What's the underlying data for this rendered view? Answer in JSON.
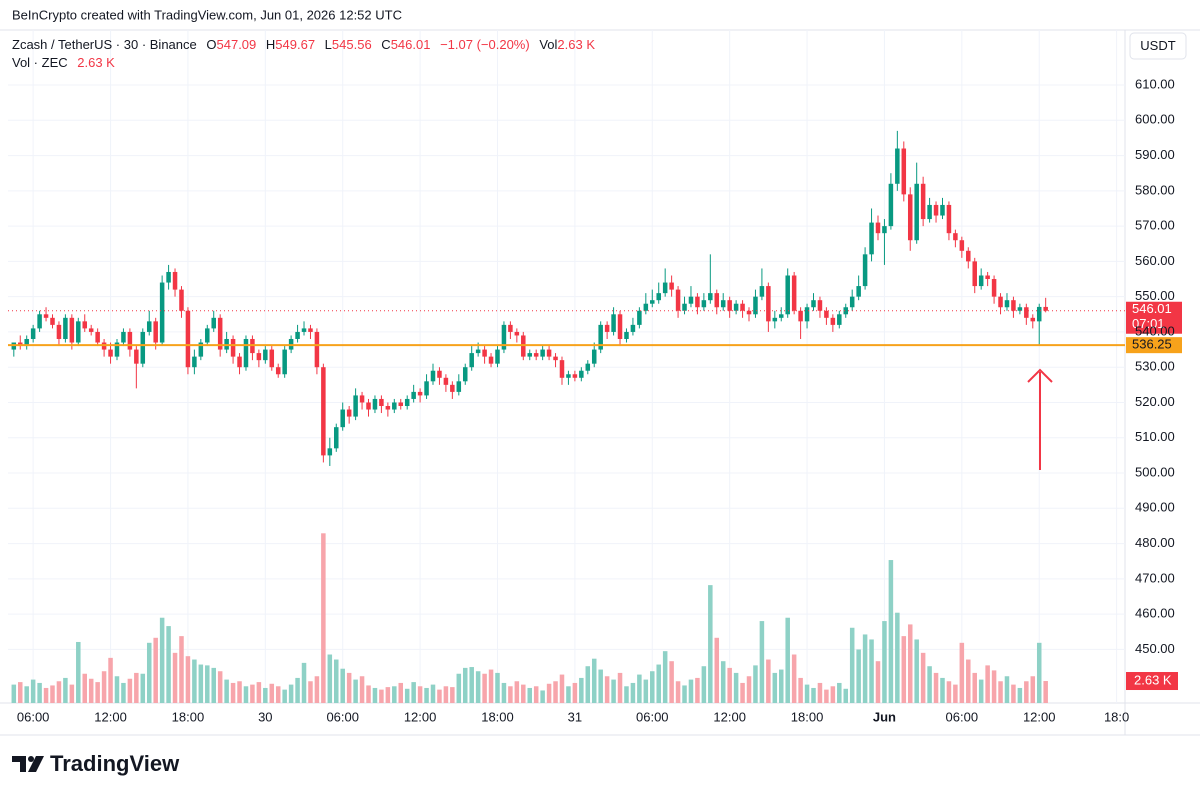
{
  "chart_data": {
    "type": "candlestick",
    "header": {
      "credit": "BeInCrypto created with TradingView.com, Jun 01, 2026 12:52 UTC",
      "symbol": "Zcash / TetherUS · 30 · Binance",
      "o_label": "O",
      "h_label": "H",
      "l_label": "L",
      "c_label": "C",
      "change": "−1.07 (−0.20%)",
      "vol_label": "Vol",
      "vol_value": "2.63 K",
      "vol_series": "Vol · ZEC"
    },
    "currency": "USDT",
    "countdown": "07:01",
    "brand": "TradingView",
    "up_color": "#089981",
    "down_color": "#f23645",
    "volume_up_color": "#8ed1c6",
    "volume_down_color": "#f7a5ab",
    "level": 536.25,
    "level_color": "#f7a21b",
    "grid": true,
    "ylim": [
      434.8,
      625.6
    ],
    "yticks": [
      {
        "value": 450,
        "label": "450.00"
      },
      {
        "value": 460,
        "label": "460.00"
      },
      {
        "value": 470,
        "label": "470.00"
      },
      {
        "value": 480,
        "label": "480.00"
      },
      {
        "value": 490,
        "label": "490.00"
      },
      {
        "value": 500,
        "label": "500.00"
      },
      {
        "value": 510,
        "label": "510.00"
      },
      {
        "value": 520,
        "label": "520.00"
      },
      {
        "value": 530,
        "label": "530.00"
      },
      {
        "value": 540,
        "label": "540.00"
      },
      {
        "value": 550,
        "label": "550.00"
      },
      {
        "value": 560,
        "label": "560.00"
      },
      {
        "value": 570,
        "label": "570.00"
      },
      {
        "value": 580,
        "label": "580.00"
      },
      {
        "value": 590,
        "label": "590.00"
      },
      {
        "value": 600,
        "label": "600.00"
      },
      {
        "value": 610,
        "label": "610.00"
      }
    ],
    "xlim": [
      -0.9,
      172.3
    ],
    "xticks": [
      {
        "value": 3,
        "label": "06:00"
      },
      {
        "value": 15,
        "label": "12:00"
      },
      {
        "value": 27,
        "label": "18:00"
      },
      {
        "value": 39,
        "label": "30"
      },
      {
        "value": 51,
        "label": "06:00"
      },
      {
        "value": 63,
        "label": "12:00"
      },
      {
        "value": 75,
        "label": "18:00"
      },
      {
        "value": 87,
        "label": "31"
      },
      {
        "value": 99,
        "label": "06:00"
      },
      {
        "value": 111,
        "label": "12:00"
      },
      {
        "value": 123,
        "label": "18:00"
      },
      {
        "value": 135,
        "label": "Jun"
      },
      {
        "value": 147,
        "label": "06:00"
      },
      {
        "value": 159,
        "label": "12:00"
      },
      {
        "value": 171,
        "label": "18:0"
      }
    ],
    "volume_ylim": [
      0,
      25
    ],
    "candles": [
      [
        535,
        537,
        533,
        537
      ],
      [
        537,
        539,
        535,
        536
      ],
      [
        536,
        539,
        535,
        538
      ],
      [
        538,
        542,
        537,
        541
      ],
      [
        541,
        546,
        540,
        545
      ],
      [
        545,
        547,
        543,
        544
      ],
      [
        544,
        545,
        541,
        542
      ],
      [
        542,
        543,
        536,
        538
      ],
      [
        538,
        545,
        537,
        544
      ],
      [
        544,
        545,
        535,
        537
      ],
      [
        537,
        544,
        536,
        543
      ],
      [
        543,
        545,
        540,
        541
      ],
      [
        541,
        542,
        539,
        540
      ],
      [
        540,
        541,
        536,
        537
      ],
      [
        537,
        538,
        533,
        535
      ],
      [
        535,
        537,
        531,
        533
      ],
      [
        533,
        538,
        532,
        537
      ],
      [
        537,
        541,
        536,
        540
      ],
      [
        540,
        541,
        533,
        535
      ],
      [
        535,
        536,
        524,
        531
      ],
      [
        531,
        541,
        530,
        540
      ],
      [
        540,
        546,
        539,
        543
      ],
      [
        543,
        544,
        535,
        537
      ],
      [
        537,
        556,
        536,
        554
      ],
      [
        554,
        559,
        552,
        557
      ],
      [
        557,
        558,
        550,
        552
      ],
      [
        552,
        553,
        544,
        546
      ],
      [
        546,
        547,
        528,
        530
      ],
      [
        530,
        535,
        528,
        533
      ],
      [
        533,
        538,
        532,
        537
      ],
      [
        537,
        542,
        536,
        541
      ],
      [
        541,
        546,
        540,
        544
      ],
      [
        544,
        545,
        533,
        535
      ],
      [
        535,
        540,
        534,
        538
      ],
      [
        538,
        539,
        531,
        533
      ],
      [
        533,
        534,
        528,
        530
      ],
      [
        530,
        539,
        529,
        538
      ],
      [
        538,
        539,
        532,
        534
      ],
      [
        534,
        535,
        530,
        532
      ],
      [
        532,
        536,
        531,
        535
      ],
      [
        535,
        536,
        529,
        530
      ],
      [
        530,
        531,
        527,
        528
      ],
      [
        528,
        536,
        527,
        535
      ],
      [
        535,
        539,
        534,
        538
      ],
      [
        538,
        542,
        537,
        540
      ],
      [
        540,
        543,
        539,
        541
      ],
      [
        541,
        542,
        538,
        540
      ],
      [
        540,
        541,
        528,
        530
      ],
      [
        530,
        531,
        503,
        505
      ],
      [
        505,
        510,
        502,
        507
      ],
      [
        507,
        514,
        506,
        513
      ],
      [
        513,
        520,
        512,
        518
      ],
      [
        518,
        519,
        514,
        516
      ],
      [
        516,
        524,
        515,
        522
      ],
      [
        522,
        523,
        518,
        520
      ],
      [
        520,
        521,
        516,
        518
      ],
      [
        518,
        522,
        517,
        521
      ],
      [
        521,
        522,
        517,
        519
      ],
      [
        519,
        520,
        516,
        518
      ],
      [
        518,
        521,
        517,
        520
      ],
      [
        520,
        521,
        518,
        519
      ],
      [
        519,
        522,
        518,
        521
      ],
      [
        521,
        525,
        520,
        523
      ],
      [
        523,
        524,
        520,
        522
      ],
      [
        522,
        528,
        521,
        526
      ],
      [
        526,
        531,
        525,
        529
      ],
      [
        529,
        530,
        525,
        527
      ],
      [
        527,
        528,
        523,
        525
      ],
      [
        525,
        526,
        521,
        523
      ],
      [
        523,
        528,
        522,
        526
      ],
      [
        526,
        531,
        525,
        530
      ],
      [
        530,
        536,
        529,
        534
      ],
      [
        534,
        537,
        533,
        535
      ],
      [
        535,
        536,
        531,
        533
      ],
      [
        533,
        534,
        530,
        531
      ],
      [
        531,
        536,
        530,
        535
      ],
      [
        535,
        543,
        534,
        542
      ],
      [
        542,
        543,
        538,
        540
      ],
      [
        540,
        541,
        537,
        539
      ],
      [
        539,
        540,
        532,
        533
      ],
      [
        533,
        535,
        532,
        534
      ],
      [
        534,
        535,
        532,
        533
      ],
      [
        533,
        536,
        532,
        535
      ],
      [
        535,
        536,
        532,
        533
      ],
      [
        533,
        534,
        530,
        532
      ],
      [
        532,
        533,
        525,
        527
      ],
      [
        527,
        529,
        525,
        528
      ],
      [
        528,
        529,
        526,
        527
      ],
      [
        527,
        530,
        526,
        529
      ],
      [
        529,
        532,
        528,
        531
      ],
      [
        531,
        537,
        530,
        535
      ],
      [
        535,
        543,
        534,
        542
      ],
      [
        542,
        543,
        538,
        540
      ],
      [
        540,
        547,
        539,
        545
      ],
      [
        545,
        546,
        536,
        538
      ],
      [
        538,
        541,
        537,
        540
      ],
      [
        540,
        544,
        539,
        542
      ],
      [
        542,
        547,
        541,
        546
      ],
      [
        546,
        551,
        545,
        548
      ],
      [
        548,
        552,
        547,
        549
      ],
      [
        549,
        554,
        548,
        551
      ],
      [
        551,
        558,
        550,
        554
      ],
      [
        554,
        556,
        550,
        552
      ],
      [
        552,
        553,
        544,
        546
      ],
      [
        546,
        550,
        545,
        548
      ],
      [
        548,
        553,
        547,
        550
      ],
      [
        550,
        551,
        545,
        547
      ],
      [
        547,
        551,
        546,
        549
      ],
      [
        549,
        562,
        548,
        551
      ],
      [
        551,
        552,
        545,
        547
      ],
      [
        547,
        551,
        546,
        549
      ],
      [
        549,
        550,
        544,
        546
      ],
      [
        546,
        549,
        545,
        548
      ],
      [
        548,
        549,
        544,
        546
      ],
      [
        546,
        547,
        543,
        545
      ],
      [
        545,
        552,
        544,
        550
      ],
      [
        550,
        558,
        549,
        553
      ],
      [
        553,
        554,
        540,
        543
      ],
      [
        543,
        546,
        541,
        544
      ],
      [
        544,
        547,
        543,
        545
      ],
      [
        545,
        558,
        544,
        556
      ],
      [
        556,
        557,
        545,
        546
      ],
      [
        546,
        547,
        538,
        543
      ],
      [
        543,
        548,
        541,
        547
      ],
      [
        547,
        551,
        546,
        549
      ],
      [
        549,
        550,
        544,
        546
      ],
      [
        546,
        547,
        542,
        544
      ],
      [
        544,
        545,
        540,
        542
      ],
      [
        542,
        546,
        541,
        545
      ],
      [
        545,
        548,
        544,
        547
      ],
      [
        547,
        552,
        546,
        550
      ],
      [
        550,
        556,
        549,
        553
      ],
      [
        553,
        564,
        552,
        562
      ],
      [
        562,
        575,
        560,
        571
      ],
      [
        571,
        573,
        566,
        568
      ],
      [
        568,
        572,
        559,
        570
      ],
      [
        570,
        585,
        569,
        582
      ],
      [
        582,
        597,
        580,
        592
      ],
      [
        592,
        594,
        577,
        579
      ],
      [
        579,
        581,
        563,
        566
      ],
      [
        566,
        588,
        565,
        582
      ],
      [
        582,
        584,
        570,
        572
      ],
      [
        572,
        578,
        571,
        576
      ],
      [
        576,
        577,
        571,
        573
      ],
      [
        573,
        578,
        572,
        576
      ],
      [
        576,
        577,
        566,
        568
      ],
      [
        568,
        569,
        564,
        566
      ],
      [
        566,
        567,
        561,
        563
      ],
      [
        563,
        564,
        558,
        560
      ],
      [
        560,
        561,
        551,
        553
      ],
      [
        553,
        558,
        552,
        556
      ],
      [
        556,
        557,
        553,
        555
      ],
      [
        555,
        556,
        548,
        550
      ],
      [
        550,
        551,
        545,
        547
      ],
      [
        547,
        551,
        546,
        549
      ],
      [
        549,
        550,
        544,
        546
      ],
      [
        546,
        548,
        545,
        547
      ],
      [
        547,
        548,
        542,
        544
      ],
      [
        544,
        545,
        541,
        543
      ],
      [
        543,
        548,
        536.25,
        547.09
      ],
      [
        547.09,
        549.67,
        545.56,
        546.01
      ]
    ],
    "volume": [
      2.2,
      2.5,
      2.0,
      2.8,
      2.4,
      1.8,
      2.1,
      2.6,
      3.0,
      2.2,
      7.3,
      3.5,
      2.9,
      2.5,
      3.8,
      5.4,
      3.2,
      2.4,
      2.9,
      3.6,
      3.5,
      7.2,
      7.8,
      10.2,
      9.2,
      6.0,
      8.0,
      5.6,
      5.2,
      4.6,
      4.5,
      4.2,
      3.8,
      2.8,
      2.4,
      2.6,
      2.0,
      2.2,
      2.5,
      1.8,
      2.3,
      2.0,
      1.6,
      2.2,
      3.0,
      4.8,
      2.6,
      3.2,
      20.3,
      5.8,
      5.2,
      4.1,
      3.6,
      2.8,
      3.2,
      2.1,
      1.8,
      1.6,
      1.9,
      2.0,
      2.4,
      1.7,
      2.5,
      2.0,
      1.8,
      2.2,
      1.6,
      2.0,
      1.9,
      3.5,
      4.2,
      4.3,
      3.8,
      3.5,
      4.0,
      3.6,
      2.4,
      2.0,
      2.6,
      2.2,
      1.8,
      2.0,
      1.5,
      2.3,
      2.6,
      3.4,
      2.0,
      2.4,
      3.0,
      4.4,
      5.3,
      4.0,
      3.2,
      2.8,
      3.6,
      2.0,
      2.4,
      3.4,
      2.8,
      3.8,
      4.6,
      6.2,
      5.0,
      2.6,
      2.1,
      2.8,
      3.0,
      4.4,
      14.1,
      7.8,
      5.0,
      4.2,
      3.6,
      2.4,
      3.2,
      4.5,
      9.8,
      5.2,
      3.6,
      4.0,
      10.2,
      5.8,
      3.0,
      2.2,
      1.8,
      2.4,
      1.6,
      2.0,
      2.4,
      1.7,
      9.0,
      6.4,
      8.2,
      7.6,
      5.0,
      9.8,
      17.1,
      10.8,
      8.0,
      9.4,
      7.6,
      6.0,
      4.4,
      3.6,
      3.0,
      2.6,
      2.2,
      7.2,
      5.2,
      3.6,
      2.8,
      4.5,
      3.9,
      2.6,
      3.2,
      2.2,
      1.8,
      2.6,
      3.2,
      7.2,
      2.63
    ]
  }
}
